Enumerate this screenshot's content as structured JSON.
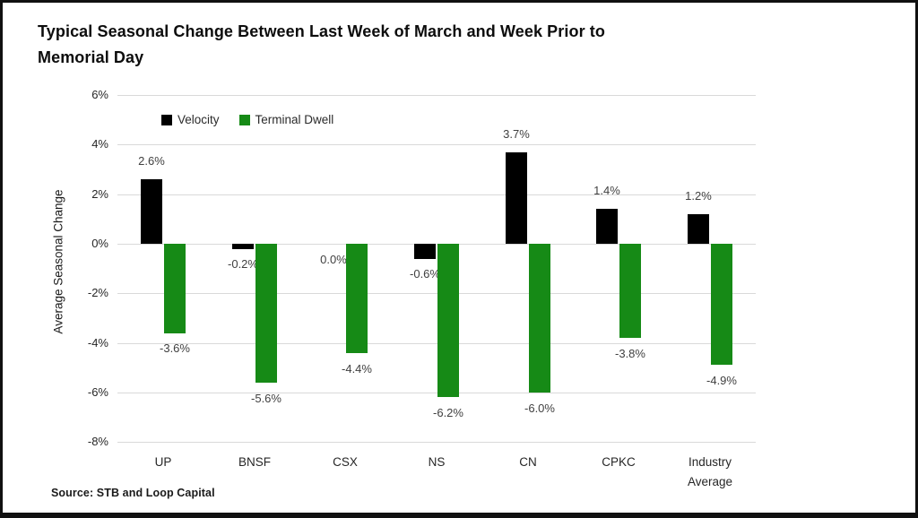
{
  "header": {
    "title_lines": [
      "Typical Seasonal Change Between Last Week of March and Week Prior to",
      "Memorial Day"
    ]
  },
  "source_note": "Source: STB and Loop Capital",
  "chart_data": {
    "type": "bar",
    "title": "Typical Seasonal Change Between Last Week of March and Week Prior to Memorial Day",
    "ylabel": "Average Seasonal Change",
    "xlabel": "",
    "ylim": [
      -8,
      6
    ],
    "ytick_values": [
      6,
      4,
      2,
      0,
      -2,
      -4,
      -6,
      -8
    ],
    "ytick_labels": [
      "6%",
      "4%",
      "2%",
      "0%",
      "-2%",
      "-4%",
      "-6%",
      "-8%"
    ],
    "grid": true,
    "legend_position": "top-inside",
    "categories": [
      "UP",
      "BNSF",
      "CSX",
      "NS",
      "CN",
      "CPKC",
      "Industry Average"
    ],
    "series": [
      {
        "name": "Velocity",
        "color": "#000000",
        "values": [
          2.6,
          -0.2,
          0.0,
          -0.6,
          3.7,
          1.4,
          1.2
        ],
        "labels": [
          "2.6%",
          "-0.2%",
          "0.0%",
          "-0.6%",
          "3.7%",
          "1.4%",
          "1.2%"
        ]
      },
      {
        "name": "Terminal Dwell",
        "color": "#168a16",
        "values": [
          -3.6,
          -5.6,
          -4.4,
          -6.2,
          -6.0,
          -3.8,
          -4.9
        ],
        "labels": [
          "-3.6%",
          "-5.6%",
          "-4.4%",
          "-6.2%",
          "-6.0%",
          "-3.8%",
          "-4.9%"
        ]
      }
    ]
  }
}
